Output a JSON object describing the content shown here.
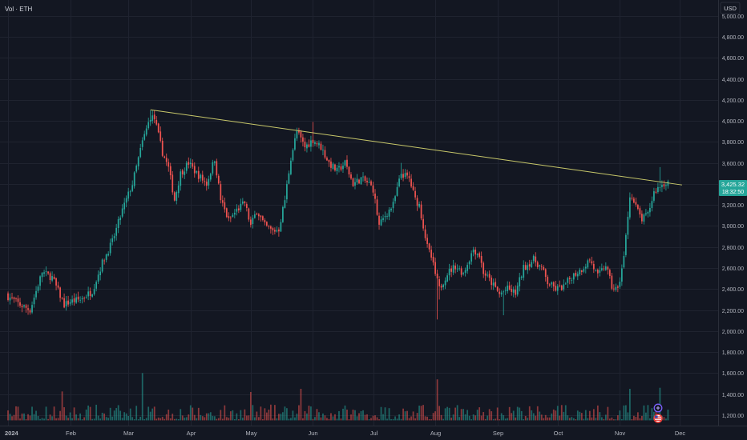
{
  "header": {
    "vol_label": "Vol · ETH",
    "currency_button": "USD"
  },
  "price_badge": {
    "price": "3,425.32",
    "countdown": "18:32:50"
  },
  "colors": {
    "up": "#26a69a",
    "down": "#ef5350",
    "trendline": "#c8c86a",
    "background": "#131722",
    "grid": "#1f2330",
    "axis_text": "#b2b5be"
  },
  "icons": {
    "indicator": "plus-circle-icon",
    "flag": "us-flag-icon"
  },
  "chart_data": {
    "type": "candlestick",
    "title": "",
    "ylabel": "",
    "ylim": [
      1100,
      5150
    ],
    "y_ticks": [
      "5,000.00",
      "4,800.00",
      "4,600.00",
      "4,400.00",
      "4,200.00",
      "4,000.00",
      "3,800.00",
      "3,600.00",
      "3,400.00",
      "3,200.00",
      "3,000.00",
      "2,800.00",
      "2,600.00",
      "2,400.00",
      "2,200.00",
      "2,000.00",
      "1,800.00",
      "1,600.00",
      "1,400.00",
      "1,200.00"
    ],
    "y_tick_values": [
      5000,
      4800,
      4600,
      4400,
      4200,
      4000,
      3800,
      3600,
      3400,
      3200,
      3000,
      2800,
      2600,
      2400,
      2200,
      2000,
      1800,
      1600,
      1400,
      1200
    ],
    "x_ticks": [
      {
        "label": "2024",
        "day": 0
      },
      {
        "label": "Feb",
        "day": 31
      },
      {
        "label": "Mar",
        "day": 60
      },
      {
        "label": "Apr",
        "day": 91
      },
      {
        "label": "May",
        "day": 121
      },
      {
        "label": "Jun",
        "day": 152
      },
      {
        "label": "Jul",
        "day": 182
      },
      {
        "label": "Aug",
        "day": 213
      },
      {
        "label": "Sep",
        "day": 244
      },
      {
        "label": "Oct",
        "day": 274
      },
      {
        "label": "Nov",
        "day": 305
      },
      {
        "label": "Dec",
        "day": 335
      }
    ],
    "x_range_days": [
      -4,
      354
    ],
    "last_day": 329,
    "close_anchors": [
      [
        0,
        2330
      ],
      [
        6,
        2250
      ],
      [
        11,
        2200
      ],
      [
        17,
        2560
      ],
      [
        22,
        2510
      ],
      [
        28,
        2250
      ],
      [
        31,
        2280
      ],
      [
        36,
        2300
      ],
      [
        42,
        2380
      ],
      [
        47,
        2650
      ],
      [
        52,
        2850
      ],
      [
        57,
        3150
      ],
      [
        62,
        3400
      ],
      [
        67,
        3800
      ],
      [
        71,
        4040
      ],
      [
        73,
        4020
      ],
      [
        77,
        3700
      ],
      [
        80,
        3550
      ],
      [
        83,
        3250
      ],
      [
        86,
        3500
      ],
      [
        90,
        3600
      ],
      [
        94,
        3500
      ],
      [
        99,
        3400
      ],
      [
        103,
        3640
      ],
      [
        106,
        3250
      ],
      [
        110,
        3050
      ],
      [
        114,
        3150
      ],
      [
        118,
        3220
      ],
      [
        121,
        3000
      ],
      [
        124,
        3150
      ],
      [
        128,
        3000
      ],
      [
        132,
        2950
      ],
      [
        135,
        2970
      ],
      [
        138,
        3250
      ],
      [
        141,
        3650
      ],
      [
        144,
        3900
      ],
      [
        148,
        3750
      ],
      [
        152,
        3820
      ],
      [
        156,
        3750
      ],
      [
        160,
        3600
      ],
      [
        164,
        3520
      ],
      [
        168,
        3600
      ],
      [
        172,
        3400
      ],
      [
        176,
        3450
      ],
      [
        180,
        3400
      ],
      [
        182,
        3350
      ],
      [
        185,
        3000
      ],
      [
        188,
        3100
      ],
      [
        192,
        3200
      ],
      [
        196,
        3500
      ],
      [
        200,
        3450
      ],
      [
        203,
        3250
      ],
      [
        205,
        3200
      ],
      [
        209,
        2800
      ],
      [
        211,
        2700
      ],
      [
        213,
        2540
      ],
      [
        215,
        2400
      ],
      [
        219,
        2550
      ],
      [
        223,
        2620
      ],
      [
        227,
        2550
      ],
      [
        232,
        2780
      ],
      [
        235,
        2720
      ],
      [
        237,
        2560
      ],
      [
        241,
        2460
      ],
      [
        245,
        2350
      ],
      [
        249,
        2400
      ],
      [
        253,
        2360
      ],
      [
        257,
        2600
      ],
      [
        262,
        2680
      ],
      [
        266,
        2600
      ],
      [
        269,
        2460
      ],
      [
        273,
        2400
      ],
      [
        277,
        2420
      ],
      [
        281,
        2520
      ],
      [
        286,
        2590
      ],
      [
        290,
        2680
      ],
      [
        294,
        2520
      ],
      [
        298,
        2630
      ],
      [
        301,
        2420
      ],
      [
        304,
        2390
      ],
      [
        307,
        2700
      ],
      [
        310,
        3300
      ],
      [
        313,
        3180
      ],
      [
        316,
        3060
      ],
      [
        319,
        3110
      ],
      [
        322,
        3320
      ],
      [
        325,
        3380
      ],
      [
        329,
        3425
      ]
    ],
    "wick_overrides": [
      {
        "day": 71,
        "high": 4100
      },
      {
        "day": 152,
        "high": 3990
      },
      {
        "day": 196,
        "high": 3600
      },
      {
        "day": 214,
        "low": 2110
      },
      {
        "day": 215,
        "low": 2300
      },
      {
        "day": 247,
        "low": 2150
      },
      {
        "day": 304,
        "low": 2370
      },
      {
        "day": 325,
        "high": 3560
      }
    ],
    "volume": {
      "base": 1150,
      "peaks": [
        {
          "day": 27,
          "value": 1425
        },
        {
          "day": 67,
          "value": 1600
        },
        {
          "day": 121,
          "value": 1420
        },
        {
          "day": 146,
          "value": 1450
        },
        {
          "day": 214,
          "value": 1540
        },
        {
          "day": 310,
          "value": 1450
        },
        {
          "day": 325,
          "value": 1460
        }
      ],
      "typical_range": [
        1160,
        1300
      ]
    },
    "trendline": {
      "from": {
        "day": 71,
        "price": 4105
      },
      "to": {
        "day": 336,
        "price": 3390
      }
    },
    "last_price": 3425.32,
    "grid": true
  }
}
